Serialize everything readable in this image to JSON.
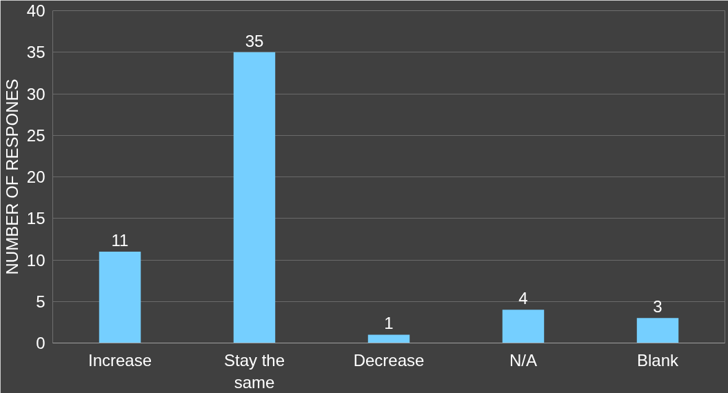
{
  "chart_data": {
    "type": "bar",
    "ylabel": "NUMBER OF RESPONES",
    "categories": [
      "Increase",
      "Stay the same",
      "Decrease",
      "N/A",
      "Blank"
    ],
    "values": [
      11,
      35,
      1,
      4,
      3
    ],
    "color": "#75cfff",
    "ylim": [
      0,
      40
    ],
    "yticks": [
      0,
      5,
      10,
      15,
      20,
      25,
      30,
      35,
      40
    ],
    "grid": "y",
    "data_labels": true
  }
}
